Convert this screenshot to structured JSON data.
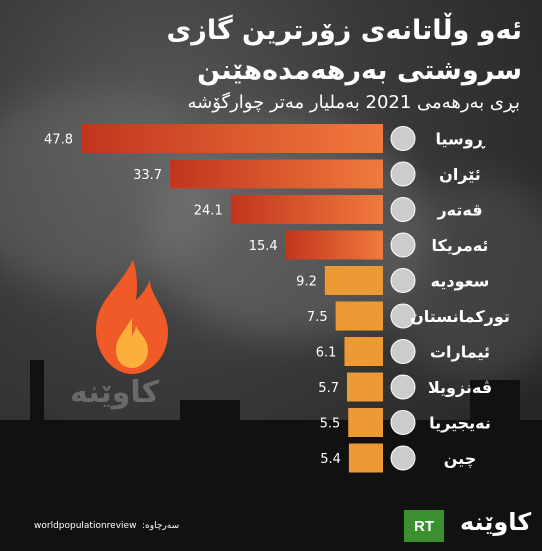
{
  "title_line1": "ئەو وڵاتانەی زۆرترین گازی",
  "title_line2": "سروشتی بەرهەمدەهێنن",
  "subtitle": "بڕی بەرهەمی 2021 بەملیار مەتر چوارگۆشە",
  "source_label": "سەرچاوە:",
  "source_site": "worldpopulationreview",
  "rt_logo": "RT",
  "brand_logo": "کاوێنە",
  "watermark": "کاوێنە",
  "colors": {
    "bar_dark": "#c2351e",
    "bar_light": "#f07a3c",
    "bar_small": "#ee9a34",
    "flame_outer": "#f05a28",
    "flame_inner": "#fbb03b"
  },
  "chart_data": {
    "type": "bar",
    "orientation": "horizontal",
    "categories": [
      "ڕوسیا",
      "ئێران",
      "قەتەر",
      "ئەمریکا",
      "سعودیە",
      "تورکمانستان",
      "ئیمارات",
      "ڤەنزویلا",
      "نەیجیریا",
      "چین"
    ],
    "values": [
      47.8,
      33.7,
      24.1,
      15.4,
      9.2,
      7.5,
      6.1,
      5.7,
      5.5,
      5.4
    ],
    "value_labels": [
      "47.8",
      "33.7",
      "24.1",
      "15.4",
      "9.2",
      "7.5",
      "6.1",
      "5.7",
      "5.5",
      "5.4"
    ],
    "flags": [
      "russia-flag-icon",
      "iran-flag-icon",
      "qatar-flag-icon",
      "usa-flag-icon",
      "saudi-flag-icon",
      "turkmenistan-flag-icon",
      "uae-flag-icon",
      "venezuela-flag-icon",
      "nigeria-flag-icon",
      "china-flag-icon"
    ],
    "xlim": [
      0,
      47.8
    ],
    "grid": false,
    "legend": "none"
  }
}
